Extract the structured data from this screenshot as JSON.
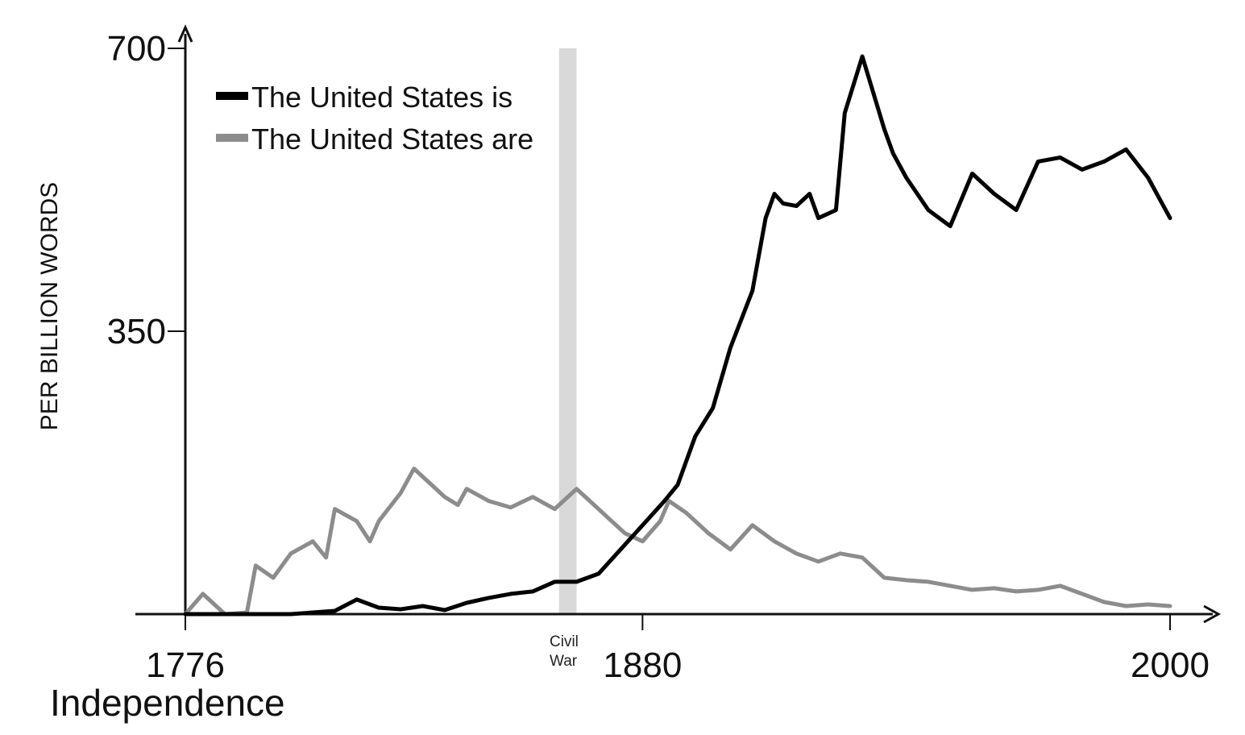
{
  "chart_data": {
    "type": "line",
    "xlabel": "",
    "ylabel": "PER BILLION WORDS",
    "xlim": [
      1776,
      2000
    ],
    "ylim": [
      0,
      700
    ],
    "x_ticks": [
      {
        "value": 1776,
        "label": "1776"
      },
      {
        "value": 1880,
        "label": "1880"
      },
      {
        "value": 2000,
        "label": "2000"
      }
    ],
    "y_ticks": [
      {
        "value": 350,
        "label": "350"
      },
      {
        "value": 700,
        "label": "700"
      }
    ],
    "annotations": [
      {
        "x": 1776,
        "label": "Independence"
      },
      {
        "x_start": 1861,
        "x_end": 1865,
        "label_line1": "Civil",
        "label_line2": "War",
        "band_color": "#d9d9d9"
      }
    ],
    "grid": false,
    "legend_position": "top-left",
    "series": [
      {
        "name": "The United States is",
        "color": "#000000",
        "x": [
          1776,
          1790,
          1800,
          1810,
          1815,
          1820,
          1825,
          1830,
          1835,
          1840,
          1845,
          1850,
          1855,
          1860,
          1865,
          1870,
          1875,
          1880,
          1885,
          1888,
          1892,
          1896,
          1900,
          1905,
          1908,
          1910,
          1912,
          1915,
          1918,
          1920,
          1924,
          1926,
          1930,
          1935,
          1937,
          1940,
          1945,
          1950,
          1955,
          1960,
          1965,
          1970,
          1975,
          1980,
          1985,
          1990,
          1995,
          2000
        ],
        "y": [
          0,
          0,
          0,
          4,
          18,
          8,
          6,
          10,
          5,
          14,
          20,
          25,
          28,
          40,
          40,
          50,
          80,
          110,
          140,
          160,
          220,
          255,
          330,
          400,
          490,
          520,
          508,
          505,
          520,
          490,
          500,
          620,
          690,
          600,
          570,
          540,
          500,
          480,
          545,
          520,
          500,
          560,
          565,
          550,
          560,
          575,
          540,
          490
        ]
      },
      {
        "name": "The United States are",
        "color": "#8c8c8c",
        "x": [
          1776,
          1780,
          1785,
          1790,
          1792,
          1796,
          1800,
          1805,
          1808,
          1810,
          1815,
          1818,
          1820,
          1825,
          1828,
          1832,
          1835,
          1838,
          1840,
          1845,
          1850,
          1855,
          1860,
          1862,
          1865,
          1868,
          1872,
          1876,
          1880,
          1884,
          1886,
          1890,
          1895,
          1900,
          1905,
          1910,
          1915,
          1920,
          1925,
          1930,
          1935,
          1940,
          1945,
          1950,
          1955,
          1960,
          1965,
          1970,
          1975,
          1980,
          1985,
          1990,
          1995,
          2000
        ],
        "y": [
          0,
          25,
          0,
          2,
          60,
          45,
          75,
          90,
          70,
          130,
          115,
          90,
          115,
          150,
          180,
          160,
          145,
          135,
          155,
          140,
          132,
          145,
          130,
          140,
          155,
          140,
          120,
          100,
          90,
          115,
          140,
          125,
          100,
          80,
          110,
          90,
          75,
          65,
          75,
          70,
          45,
          42,
          40,
          35,
          30,
          32,
          28,
          30,
          35,
          25,
          15,
          10,
          12,
          10
        ]
      }
    ]
  }
}
